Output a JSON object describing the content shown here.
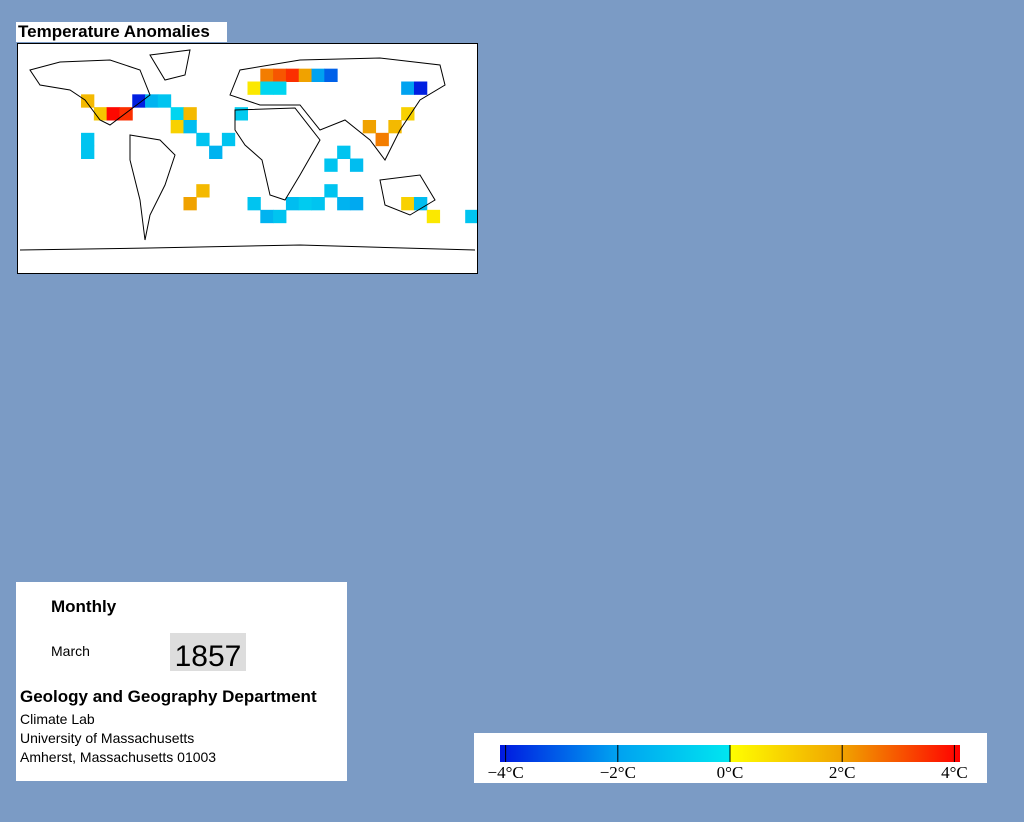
{
  "title": "Temperature Anomalies",
  "map": {
    "cells": [
      {
        "lon": -130,
        "lat": 50,
        "value": 1.5
      },
      {
        "lon": -120,
        "lat": 40,
        "value": 1.2
      },
      {
        "lon": -110,
        "lat": 40,
        "value": 4
      },
      {
        "lon": -100,
        "lat": 40,
        "value": 3.5
      },
      {
        "lon": -90,
        "lat": 50,
        "value": -4
      },
      {
        "lon": -80,
        "lat": 50,
        "value": -1.5
      },
      {
        "lon": -70,
        "lat": 50,
        "value": -1
      },
      {
        "lon": -60,
        "lat": 40,
        "value": -0.5
      },
      {
        "lon": -130,
        "lat": 20,
        "value": -1
      },
      {
        "lon": -130,
        "lat": 10,
        "value": -1
      },
      {
        "lon": -60,
        "lat": 30,
        "value": 1
      },
      {
        "lon": -50,
        "lat": 40,
        "value": 1.5
      },
      {
        "lon": -50,
        "lat": 30,
        "value": -1.2
      },
      {
        "lon": -40,
        "lat": 20,
        "value": -1
      },
      {
        "lon": -30,
        "lat": 10,
        "value": -1.5
      },
      {
        "lon": -20,
        "lat": 20,
        "value": -1
      },
      {
        "lon": -10,
        "lat": 40,
        "value": -0.8
      },
      {
        "lon": 0,
        "lat": 60,
        "value": 0.5
      },
      {
        "lon": 10,
        "lat": 70,
        "value": 2.5
      },
      {
        "lon": 20,
        "lat": 70,
        "value": 3
      },
      {
        "lon": 30,
        "lat": 70,
        "value": 3.5
      },
      {
        "lon": 40,
        "lat": 70,
        "value": 2
      },
      {
        "lon": 50,
        "lat": 70,
        "value": -2
      },
      {
        "lon": 60,
        "lat": 70,
        "value": -3
      },
      {
        "lon": 10,
        "lat": 60,
        "value": -0.5
      },
      {
        "lon": 20,
        "lat": 60,
        "value": -0.5
      },
      {
        "lon": -50,
        "lat": -30,
        "value": 2
      },
      {
        "lon": -40,
        "lat": -20,
        "value": 1.5
      },
      {
        "lon": 0,
        "lat": -30,
        "value": -1
      },
      {
        "lon": 10,
        "lat": -40,
        "value": -1.5
      },
      {
        "lon": 20,
        "lat": -40,
        "value": -1
      },
      {
        "lon": 30,
        "lat": -30,
        "value": -1.2
      },
      {
        "lon": 40,
        "lat": -30,
        "value": -0.8
      },
      {
        "lon": 50,
        "lat": -30,
        "value": -1
      },
      {
        "lon": 60,
        "lat": -20,
        "value": -1
      },
      {
        "lon": 70,
        "lat": -30,
        "value": -1.5
      },
      {
        "lon": 80,
        "lat": -30,
        "value": -1.8
      },
      {
        "lon": 60,
        "lat": 0,
        "value": -1
      },
      {
        "lon": 70,
        "lat": 10,
        "value": -1
      },
      {
        "lon": 80,
        "lat": 0,
        "value": -1.2
      },
      {
        "lon": 90,
        "lat": 30,
        "value": 2
      },
      {
        "lon": 100,
        "lat": 20,
        "value": 2.5
      },
      {
        "lon": 110,
        "lat": 30,
        "value": 1.5
      },
      {
        "lon": 120,
        "lat": 40,
        "value": 1
      },
      {
        "lon": 120,
        "lat": 60,
        "value": -2
      },
      {
        "lon": 130,
        "lat": 60,
        "value": -4
      },
      {
        "lon": 120,
        "lat": -30,
        "value": 1
      },
      {
        "lon": 130,
        "lat": -30,
        "value": -1.2
      },
      {
        "lon": 140,
        "lat": -40,
        "value": 0.5
      },
      {
        "lon": 170,
        "lat": -40,
        "value": -1
      }
    ]
  },
  "panel": {
    "frequency": "Monthly",
    "month": "March",
    "year": "1857",
    "department": "Geology and Geography Department",
    "address": [
      "Climate Lab",
      "University of Massachusetts",
      "Amherst, Massachusetts 01003"
    ]
  },
  "colorbar": {
    "lim": [
      -4.1,
      4.1
    ],
    "colors": [
      "#0018e0",
      "#00a0f0",
      "#00e6f0",
      "#ffff00",
      "#f0a000",
      "#ff0000"
    ],
    "ticks": [
      {
        "value": -4,
        "label": "−4°C"
      },
      {
        "value": -2,
        "label": "−2°C"
      },
      {
        "value": 0,
        "label": "0°C"
      },
      {
        "value": 2,
        "label": "2°C"
      },
      {
        "value": 4,
        "label": "4°C"
      }
    ]
  }
}
